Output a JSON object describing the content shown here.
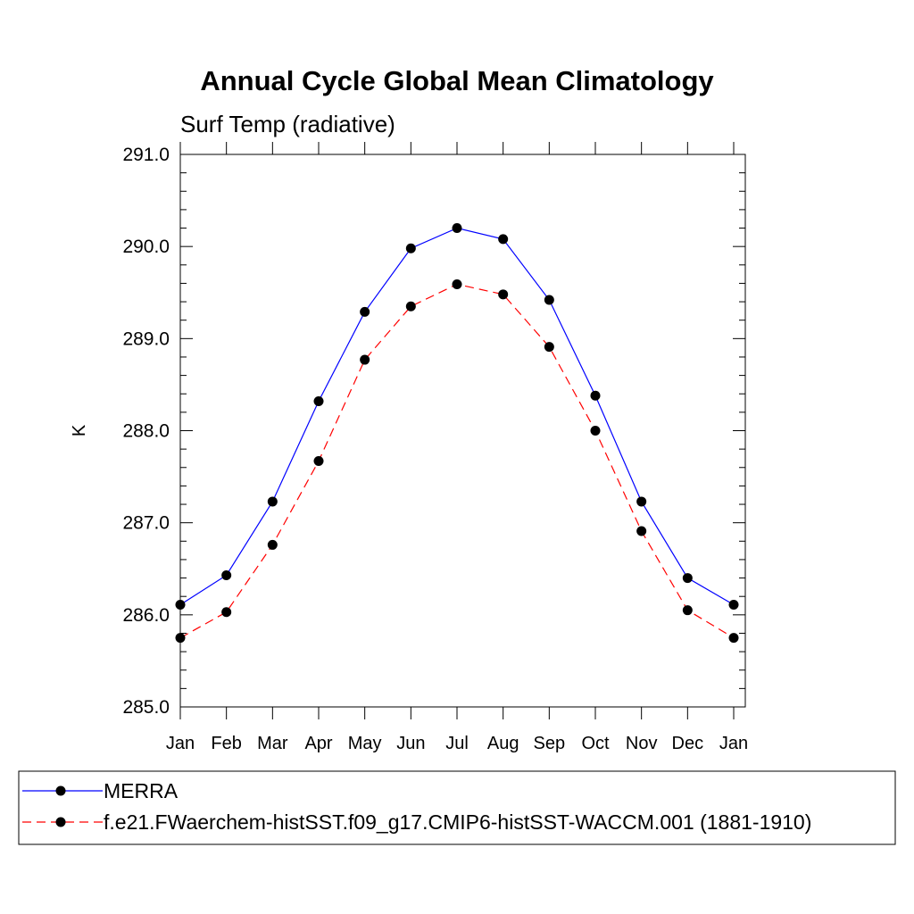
{
  "chart_data": {
    "type": "line",
    "title": "Annual Cycle Global Mean Climatology",
    "subtitle": "Surf Temp (radiative)",
    "xlabel": "",
    "ylabel": "K",
    "categories": [
      "Jan",
      "Feb",
      "Mar",
      "Apr",
      "May",
      "Jun",
      "Jul",
      "Aug",
      "Sep",
      "Oct",
      "Nov",
      "Dec",
      "Jan"
    ],
    "ylim": [
      285.0,
      291.0
    ],
    "yticks": [
      "285.0",
      "286.0",
      "287.0",
      "288.0",
      "289.0",
      "290.0",
      "291.0"
    ],
    "grid": false,
    "legend_position": "bottom",
    "series": [
      {
        "name": "MERRA",
        "color": "#0000ff",
        "line_style": "solid",
        "marker": "filled-circle",
        "values": [
          286.11,
          286.43,
          287.23,
          288.32,
          289.29,
          289.98,
          290.2,
          290.08,
          289.42,
          288.38,
          287.23,
          286.4,
          286.11
        ]
      },
      {
        "name": "f.e21.FWaerchem-histSST.f09_g17.CMIP6-histSST-WACCM.001 (1881-1910)",
        "color": "#ff0000",
        "line_style": "dashed",
        "marker": "filled-circle",
        "values": [
          285.75,
          286.03,
          286.76,
          287.67,
          288.77,
          289.35,
          289.59,
          289.48,
          288.91,
          288.0,
          286.91,
          286.05,
          285.75
        ]
      }
    ]
  }
}
